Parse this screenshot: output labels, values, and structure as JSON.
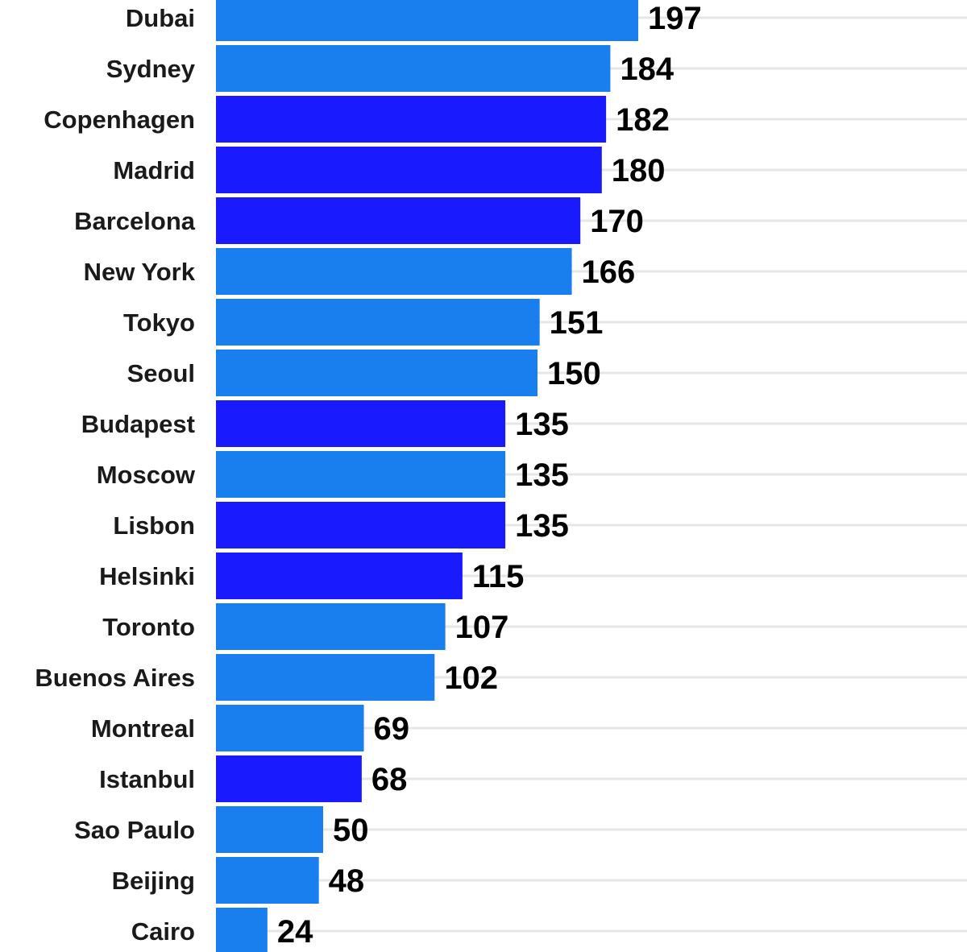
{
  "chart_data": {
    "type": "bar",
    "orientation": "horizontal",
    "categories": [
      "Dubai",
      "Sydney",
      "Copenhagen",
      "Madrid",
      "Barcelona",
      "New York",
      "Tokyo",
      "Seoul",
      "Budapest",
      "Moscow",
      "Lisbon",
      "Helsinki",
      "Toronto",
      "Buenos Aires",
      "Montreal",
      "Istanbul",
      "Sao Paulo",
      "Beijing",
      "Cairo"
    ],
    "values": [
      197,
      184,
      182,
      180,
      170,
      166,
      151,
      150,
      135,
      135,
      135,
      115,
      107,
      102,
      69,
      68,
      50,
      48,
      24
    ],
    "value_labels": [
      "197",
      "184",
      "182",
      "180",
      "170",
      "166",
      "151",
      "150",
      "135",
      "135",
      "135",
      "115",
      "107",
      "102",
      "69",
      "68",
      "50",
      "48",
      "24"
    ],
    "bar_color_group": [
      "light",
      "light",
      "dark",
      "dark",
      "dark",
      "light",
      "light",
      "light",
      "dark",
      "light",
      "dark",
      "dark",
      "light",
      "light",
      "light",
      "dark",
      "light",
      "light",
      "light"
    ],
    "colors": {
      "light": "#1a7fee",
      "dark": "#1a1aff"
    },
    "xlim": [
      0,
      200
    ],
    "grid": true,
    "legend": "none",
    "title": "",
    "xlabel": "",
    "ylabel": ""
  }
}
